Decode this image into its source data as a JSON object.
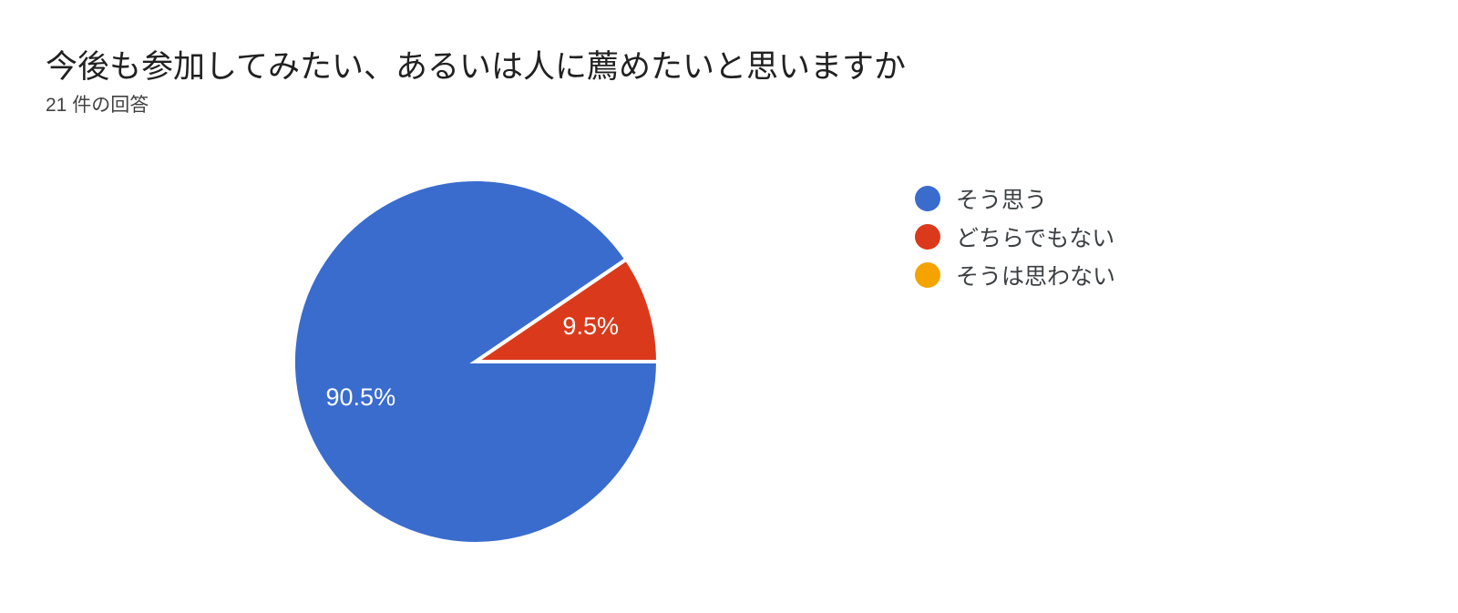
{
  "chart_data": {
    "type": "pie",
    "title": "今後も参加してみたい、あるいは人に薦めたいと思いますか",
    "subtitle": "21 件の回答",
    "legend_position": "right",
    "start_angle_deg": 0,
    "direction": "clockwise",
    "slices": [
      {
        "label": "そう思う",
        "percent": 90.5,
        "percent_label": "90.5%",
        "color": "#3a6cce"
      },
      {
        "label": "どちらでもない",
        "percent": 9.5,
        "percent_label": "9.5%",
        "color": "#da3a1b"
      },
      {
        "label": "そうは思わない",
        "percent": 0,
        "percent_label": "",
        "color": "#f5a300"
      }
    ],
    "slice_separator_color": "#ffffff",
    "label_color": "#ffffff"
  }
}
